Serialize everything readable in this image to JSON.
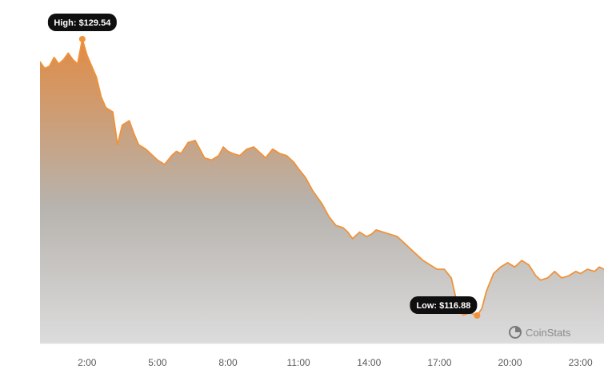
{
  "chart_data": {
    "type": "area",
    "x_unit": "hour of day",
    "x_ticks": [
      {
        "x": 2,
        "label": "2:00"
      },
      {
        "x": 5,
        "label": "5:00"
      },
      {
        "x": 8,
        "label": "8:00"
      },
      {
        "x": 11,
        "label": "11:00"
      },
      {
        "x": 14,
        "label": "14:00"
      },
      {
        "x": 17,
        "label": "17:00"
      },
      {
        "x": 20,
        "label": "20:00"
      },
      {
        "x": 23,
        "label": "23:00"
      }
    ],
    "xlim": [
      0,
      24
    ],
    "ylim": [
      115.6,
      130.6
    ],
    "grid": false,
    "high": {
      "label": "High: $129.54",
      "x": 1.8,
      "value": 129.54
    },
    "low": {
      "label": "Low: $116.88",
      "x": 18.6,
      "value": 116.88
    },
    "brand": "CoinStats",
    "series": [
      {
        "x": [
          0,
          0.2,
          0.4,
          0.6,
          0.8,
          1.0,
          1.2,
          1.4,
          1.6,
          1.8,
          2.0,
          2.2,
          2.4,
          2.6,
          2.8,
          3.1,
          3.3,
          3.5,
          3.8,
          4.0,
          4.2,
          4.5,
          4.8,
          5.0,
          5.3,
          5.6,
          5.8,
          6.0,
          6.3,
          6.6,
          6.8,
          7.0,
          7.3,
          7.6,
          7.8,
          8.0,
          8.2,
          8.5,
          8.8,
          9.1,
          9.3,
          9.6,
          9.9,
          10.2,
          10.5,
          10.8,
          11.0,
          11.3,
          11.6,
          12.0,
          12.3,
          12.6,
          12.9,
          13.1,
          13.3,
          13.6,
          13.9,
          14.1,
          14.3,
          14.6,
          14.9,
          15.2,
          15.5,
          15.8,
          16.1,
          16.3,
          16.6,
          16.9,
          17.2,
          17.5,
          17.8,
          18.0,
          18.3,
          18.6,
          18.8,
          19.0,
          19.3,
          19.6,
          19.9,
          20.2,
          20.5,
          20.8,
          21.1,
          21.3,
          21.6,
          21.9,
          22.2,
          22.5,
          22.8,
          23.0,
          23.3,
          23.6,
          23.8,
          24.0
        ],
        "y": [
          128.5,
          128.2,
          128.3,
          128.7,
          128.4,
          128.6,
          128.9,
          128.6,
          128.4,
          129.54,
          128.8,
          128.3,
          127.8,
          126.9,
          126.4,
          126.2,
          124.7,
          125.6,
          125.8,
          125.2,
          124.7,
          124.5,
          124.2,
          124.0,
          123.8,
          124.2,
          124.4,
          124.3,
          124.8,
          124.9,
          124.5,
          124.1,
          124.0,
          124.2,
          124.6,
          124.4,
          124.3,
          124.2,
          124.5,
          124.6,
          124.4,
          124.1,
          124.5,
          124.3,
          124.2,
          123.9,
          123.6,
          123.2,
          122.6,
          122.0,
          121.4,
          121.0,
          120.9,
          120.7,
          120.4,
          120.7,
          120.5,
          120.6,
          120.8,
          120.7,
          120.6,
          120.5,
          120.2,
          119.9,
          119.6,
          119.4,
          119.2,
          119.0,
          119.0,
          118.6,
          117.2,
          116.9,
          117.0,
          116.88,
          117.2,
          118.0,
          118.8,
          119.1,
          119.3,
          119.1,
          119.4,
          119.2,
          118.7,
          118.5,
          118.6,
          118.9,
          118.6,
          118.7,
          118.9,
          118.8,
          119.0,
          118.9,
          119.1,
          119.0
        ]
      }
    ]
  },
  "colors": {
    "line": "#f0923a",
    "fill_top": "#e08b45",
    "fill_bottom": "#dcdcdc",
    "pill": "#0f0f0f",
    "dot": "#f0923a"
  }
}
